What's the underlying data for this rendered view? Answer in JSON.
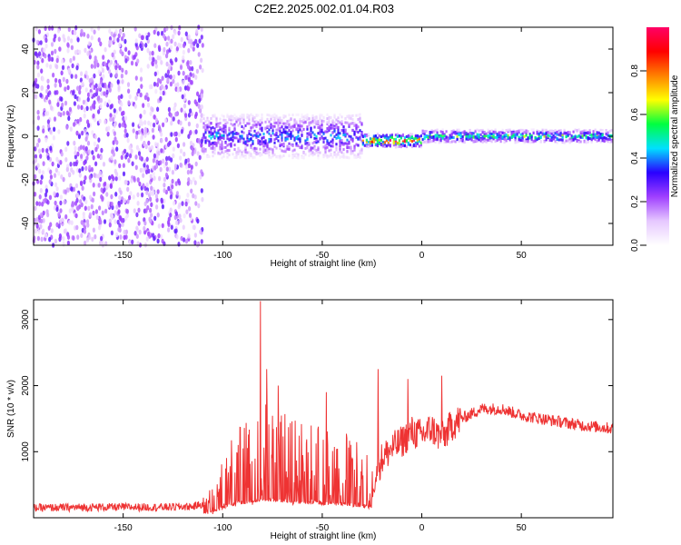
{
  "title": "C2E2.2025.002.01.04.R03",
  "chart_data": [
    {
      "type": "heatmap",
      "title": "",
      "xlabel": "Height of straight line (km)",
      "ylabel": "Frequency (Hz)",
      "xlim": [
        -195,
        96
      ],
      "ylim": [
        -50,
        50
      ],
      "x_ticks": [
        -150,
        -100,
        -50,
        0,
        50
      ],
      "y_ticks": [
        -40,
        -20,
        0,
        20,
        40
      ],
      "colorbar": {
        "label": "Normalized spectral amplitude",
        "range": [
          0.0,
          1.0
        ],
        "ticks": [
          0.0,
          0.2,
          0.4,
          0.6,
          0.8
        ],
        "colormap": [
          "#ffffff",
          "#e6c8ff",
          "#a040ff",
          "#2a00ff",
          "#00e0ff",
          "#00ff40",
          "#ffff00",
          "#ff8000",
          "#ff0000",
          "#ff0066"
        ]
      },
      "regions": [
        {
          "x": [
            -195,
            -110
          ],
          "freq_spread": 50,
          "amplitude": 0.15,
          "description": "noise"
        },
        {
          "x": [
            -110,
            -30
          ],
          "freq_spread": 10,
          "amplitude": 0.35
        },
        {
          "x": [
            -30,
            0
          ],
          "freq_center": -2,
          "freq_spread": 3,
          "amplitude": 0.8
        },
        {
          "x": [
            0,
            96
          ],
          "freq_center": 0,
          "freq_spread": 3,
          "amplitude": 0.5
        }
      ]
    },
    {
      "type": "line",
      "title": "",
      "xlabel": "Height of straight line (km)",
      "ylabel": "SNR (10 * v/v)",
      "xlim": [
        -195,
        96
      ],
      "ylim": [
        0,
        3300
      ],
      "x_ticks": [
        -150,
        -100,
        -50,
        0,
        50
      ],
      "y_ticks": [
        1000,
        2000,
        3000
      ],
      "color": "#ee3333",
      "x": [
        -195,
        -160,
        -130,
        -115,
        -105,
        -95,
        -85,
        -80,
        -75,
        -65,
        -55,
        -45,
        -35,
        -25,
        -20,
        -15,
        -10,
        -5,
        0,
        5,
        10,
        15,
        20,
        30,
        40,
        50,
        60,
        70,
        80,
        96
      ],
      "values": [
        150,
        160,
        160,
        170,
        250,
        700,
        900,
        1000,
        950,
        850,
        800,
        750,
        700,
        500,
        900,
        1050,
        1150,
        1300,
        1250,
        1350,
        1200,
        1400,
        1500,
        1650,
        1650,
        1550,
        1500,
        1450,
        1400,
        1350
      ],
      "spikes": [
        {
          "x": -81,
          "y": 3280
        },
        {
          "x": -78,
          "y": 2250
        },
        {
          "x": -72,
          "y": 2000
        },
        {
          "x": -48,
          "y": 1900
        },
        {
          "x": -22,
          "y": 2250
        },
        {
          "x": -7,
          "y": 2100
        },
        {
          "x": 10,
          "y": 2150
        },
        {
          "x": 12,
          "y": 1300
        }
      ]
    }
  ]
}
